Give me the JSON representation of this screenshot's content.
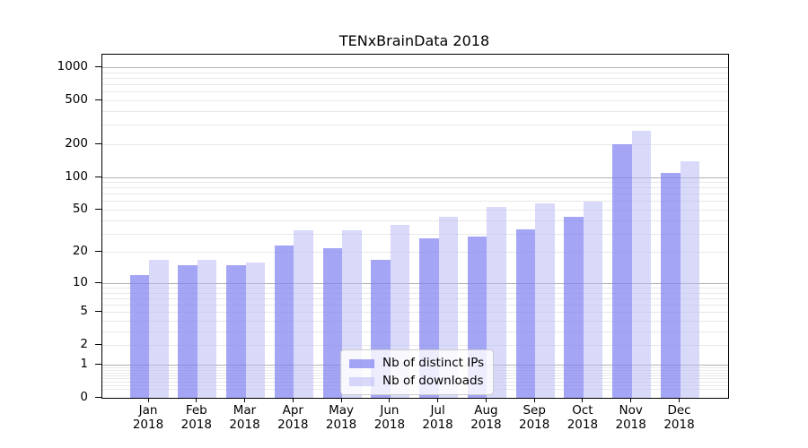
{
  "chart_data": {
    "type": "bar",
    "title": "TENxBrainData 2018",
    "xlabel": "",
    "ylabel": "",
    "x": {
      "months": [
        "Jan",
        "Feb",
        "Mar",
        "Apr",
        "May",
        "Jun",
        "Jul",
        "Aug",
        "Sep",
        "Oct",
        "Nov",
        "Dec"
      ],
      "year": "2018"
    },
    "series": [
      {
        "name": "Nb of distinct IPs",
        "color": "#8282f2",
        "opacity": 0.72,
        "values": [
          12,
          15,
          15,
          23,
          22,
          17,
          27,
          28,
          33,
          43,
          200,
          108
        ]
      },
      {
        "name": "Nb of downloads",
        "color": "#b9b9f6",
        "opacity": 0.55,
        "values": [
          17,
          17,
          16,
          32,
          32,
          36,
          43,
          53,
          57,
          59,
          265,
          140
        ]
      }
    ],
    "yticks": [
      0,
      1,
      2,
      5,
      10,
      20,
      50,
      100,
      200,
      500,
      1000
    ],
    "scale": "log1p",
    "ylim": [
      0,
      1260
    ],
    "grid": true,
    "legend_position": "lower center",
    "colors": {
      "grid_major": "#b0b0b0",
      "grid_minor": "#e8e8e8",
      "axis": "#000000",
      "background": "#ffffff"
    }
  }
}
